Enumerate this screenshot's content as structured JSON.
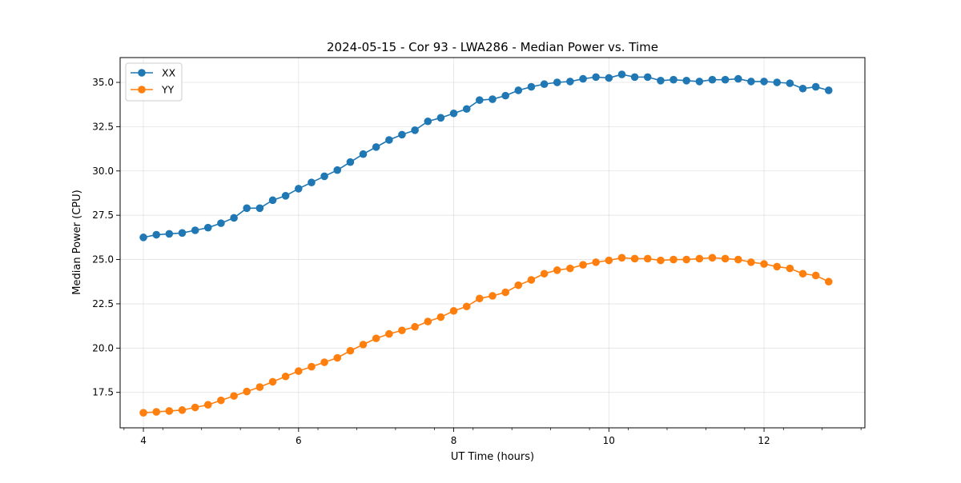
{
  "chart_data": {
    "type": "line",
    "title": "2024-05-15 - Cor 93 - LWA286 - Median Power vs. Time",
    "xlabel": "UT Time (hours)",
    "ylabel": "Median Power (CPU)",
    "xlim": [
      3.7,
      13.3
    ],
    "ylim": [
      15.5,
      36.4
    ],
    "xticks": [
      4,
      6,
      8,
      10,
      12
    ],
    "xtick_labels": [
      "4",
      "6",
      "8",
      "10",
      "12"
    ],
    "yticks": [
      17.5,
      20.0,
      22.5,
      25.0,
      27.5,
      30.0,
      32.5,
      35.0
    ],
    "ytick_labels": [
      "17.5",
      "20.0",
      "22.5",
      "25.0",
      "27.5",
      "30.0",
      "32.5",
      "35.0"
    ],
    "grid": true,
    "legend_position": "upper-left",
    "x": [
      4.0,
      4.167,
      4.333,
      4.5,
      4.667,
      4.833,
      5.0,
      5.167,
      5.333,
      5.5,
      5.667,
      5.833,
      6.0,
      6.167,
      6.333,
      6.5,
      6.667,
      6.833,
      7.0,
      7.167,
      7.333,
      7.5,
      7.667,
      7.833,
      8.0,
      8.167,
      8.333,
      8.5,
      8.667,
      8.833,
      9.0,
      9.167,
      9.333,
      9.5,
      9.667,
      9.833,
      10.0,
      10.167,
      10.333,
      10.5,
      10.667,
      10.833,
      11.0,
      11.167,
      11.333,
      11.5,
      11.667,
      11.833,
      12.0,
      12.167,
      12.333,
      12.5,
      12.667,
      12.833
    ],
    "series": [
      {
        "name": "XX",
        "color": "#1f77b4",
        "values": [
          26.25,
          26.4,
          26.45,
          26.5,
          26.65,
          26.8,
          27.05,
          27.35,
          27.9,
          27.9,
          28.35,
          28.6,
          29.0,
          29.35,
          29.7,
          30.05,
          30.5,
          30.95,
          31.35,
          31.75,
          32.05,
          32.3,
          32.8,
          33.0,
          33.25,
          33.5,
          34.0,
          34.05,
          34.25,
          34.55,
          34.75,
          34.9,
          35.0,
          35.05,
          35.2,
          35.3,
          35.25,
          35.45,
          35.3,
          35.3,
          35.1,
          35.15,
          35.1,
          35.05,
          35.15,
          35.15,
          35.2,
          35.05,
          35.05,
          35.0,
          34.95,
          34.65,
          34.75,
          34.55
        ]
      },
      {
        "name": "YY",
        "color": "#ff7f0e",
        "values": [
          16.35,
          16.4,
          16.45,
          16.5,
          16.65,
          16.8,
          17.05,
          17.3,
          17.55,
          17.8,
          18.1,
          18.4,
          18.7,
          18.95,
          19.2,
          19.45,
          19.85,
          20.2,
          20.55,
          20.8,
          21.0,
          21.2,
          21.5,
          21.75,
          22.1,
          22.35,
          22.8,
          22.95,
          23.15,
          23.55,
          23.85,
          24.2,
          24.4,
          24.5,
          24.7,
          24.85,
          24.95,
          25.1,
          25.05,
          25.05,
          24.95,
          25.0,
          25.0,
          25.05,
          25.1,
          25.05,
          25.0,
          24.85,
          24.75,
          24.6,
          24.5,
          24.2,
          24.1,
          23.75
        ]
      }
    ]
  }
}
